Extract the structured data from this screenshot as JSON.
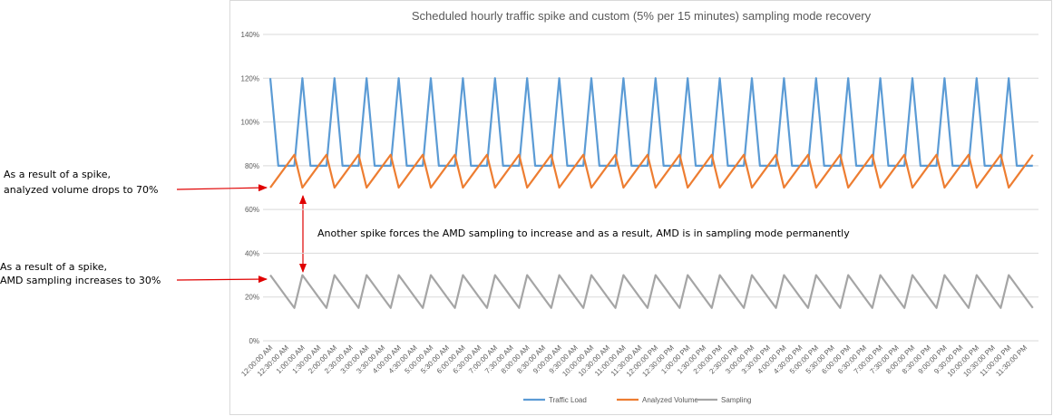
{
  "chart_data": {
    "type": "line",
    "title": "Scheduled hourly traffic spike and custom (5% per 15 minutes) sampling mode recovery",
    "categories": [
      "12:00:00 AM",
      null,
      "12:30:00 AM",
      null,
      "1:00:00 AM",
      null,
      "1:30:00 AM",
      null,
      "2:00:00 AM",
      null,
      "2:30:00 AM",
      null,
      "3:00:00 AM",
      null,
      "3:30:00 AM",
      null,
      "4:00:00 AM",
      null,
      "4:30:00 AM",
      null,
      "5:00:00 AM",
      null,
      "5:30:00 AM",
      null,
      "6:00:00 AM",
      null,
      "6:30:00 AM",
      null,
      "7:00:00 AM",
      null,
      "7:30:00 AM",
      null,
      "8:00:00 AM",
      null,
      "8:30:00 AM",
      null,
      "9:00:00 AM",
      null,
      "9:30:00 AM",
      null,
      "10:00:00 AM",
      null,
      "10:30:00 AM",
      null,
      "11:00:00 AM",
      null,
      "11:30:00 AM",
      null,
      "12:00:00 PM",
      null,
      "12:30:00 PM",
      null,
      "1:00:00 PM",
      null,
      "1:30:00 PM",
      null,
      "2:00:00 PM",
      null,
      "2:30:00 PM",
      null,
      "3:00:00 PM",
      null,
      "3:30:00 PM",
      null,
      "4:00:00 PM",
      null,
      "4:30:00 PM",
      null,
      "5:00:00 PM",
      null,
      "5:30:00 PM",
      null,
      "6:00:00 PM",
      null,
      "6:30:00 PM",
      null,
      "7:00:00 PM",
      null,
      "7:30:00 PM",
      null,
      "8:00:00 PM",
      null,
      "8:30:00 PM",
      null,
      "9:00:00 PM",
      null,
      "9:30:00 PM",
      null,
      "10:00:00 PM",
      null,
      "10:30:00 PM",
      null,
      "11:00:00 PM",
      null,
      "11:30:00 PM",
      null
    ],
    "series": [
      {
        "name": "Traffic Load",
        "color": "#5b9bd5",
        "values": [
          120,
          80,
          80,
          80,
          120,
          80,
          80,
          80,
          120,
          80,
          80,
          80,
          120,
          80,
          80,
          80,
          120,
          80,
          80,
          80,
          120,
          80,
          80,
          80,
          120,
          80,
          80,
          80,
          120,
          80,
          80,
          80,
          120,
          80,
          80,
          80,
          120,
          80,
          80,
          80,
          120,
          80,
          80,
          80,
          120,
          80,
          80,
          80,
          120,
          80,
          80,
          80,
          120,
          80,
          80,
          80,
          120,
          80,
          80,
          80,
          120,
          80,
          80,
          80,
          120,
          80,
          80,
          80,
          120,
          80,
          80,
          80,
          120,
          80,
          80,
          80,
          120,
          80,
          80,
          80,
          120,
          80,
          80,
          80,
          120,
          80,
          80,
          80,
          120,
          80,
          80,
          80,
          120,
          80,
          80,
          80
        ]
      },
      {
        "name": "Analyzed Volume",
        "color": "#ed7d31",
        "values": [
          70,
          75,
          80,
          85,
          70,
          75,
          80,
          85,
          70,
          75,
          80,
          85,
          70,
          75,
          80,
          85,
          70,
          75,
          80,
          85,
          70,
          75,
          80,
          85,
          70,
          75,
          80,
          85,
          70,
          75,
          80,
          85,
          70,
          75,
          80,
          85,
          70,
          75,
          80,
          85,
          70,
          75,
          80,
          85,
          70,
          75,
          80,
          85,
          70,
          75,
          80,
          85,
          70,
          75,
          80,
          85,
          70,
          75,
          80,
          85,
          70,
          75,
          80,
          85,
          70,
          75,
          80,
          85,
          70,
          75,
          80,
          85,
          70,
          75,
          80,
          85,
          70,
          75,
          80,
          85,
          70,
          75,
          80,
          85,
          70,
          75,
          80,
          85,
          70,
          75,
          80,
          85,
          70,
          75,
          80,
          85
        ]
      },
      {
        "name": "Sampling",
        "color": "#a5a5a5",
        "values": [
          30,
          25,
          20,
          15,
          30,
          25,
          20,
          15,
          30,
          25,
          20,
          15,
          30,
          25,
          20,
          15,
          30,
          25,
          20,
          15,
          30,
          25,
          20,
          15,
          30,
          25,
          20,
          15,
          30,
          25,
          20,
          15,
          30,
          25,
          20,
          15,
          30,
          25,
          20,
          15,
          30,
          25,
          20,
          15,
          30,
          25,
          20,
          15,
          30,
          25,
          20,
          15,
          30,
          25,
          20,
          15,
          30,
          25,
          20,
          15,
          30,
          25,
          20,
          15,
          30,
          25,
          20,
          15,
          30,
          25,
          20,
          15,
          30,
          25,
          20,
          15,
          30,
          25,
          20,
          15,
          30,
          25,
          20,
          15,
          30,
          25,
          20,
          15,
          30,
          25,
          20,
          15,
          30,
          25,
          20,
          15
        ]
      }
    ],
    "ylim": [
      0,
      140
    ],
    "yticks": [
      {
        "value": 0,
        "label": "0%"
      },
      {
        "value": 20,
        "label": "20%"
      },
      {
        "value": 40,
        "label": "40%"
      },
      {
        "value": 60,
        "label": "60%"
      },
      {
        "value": 80,
        "label": "80%"
      },
      {
        "value": 100,
        "label": "100%"
      },
      {
        "value": 120,
        "label": "120%"
      },
      {
        "value": 140,
        "label": "140%"
      }
    ],
    "grid": true,
    "legend": "bottom",
    "annotations": [
      [
        "As a result of a spike,",
        "analyzed volume drops to 70%"
      ],
      [
        "Another spike forces the AMD sampling to increase and as a result, AMD is in sampling mode permanently"
      ],
      [
        "As a result of a spike,",
        "AMD sampling increases to 30%"
      ]
    ]
  }
}
